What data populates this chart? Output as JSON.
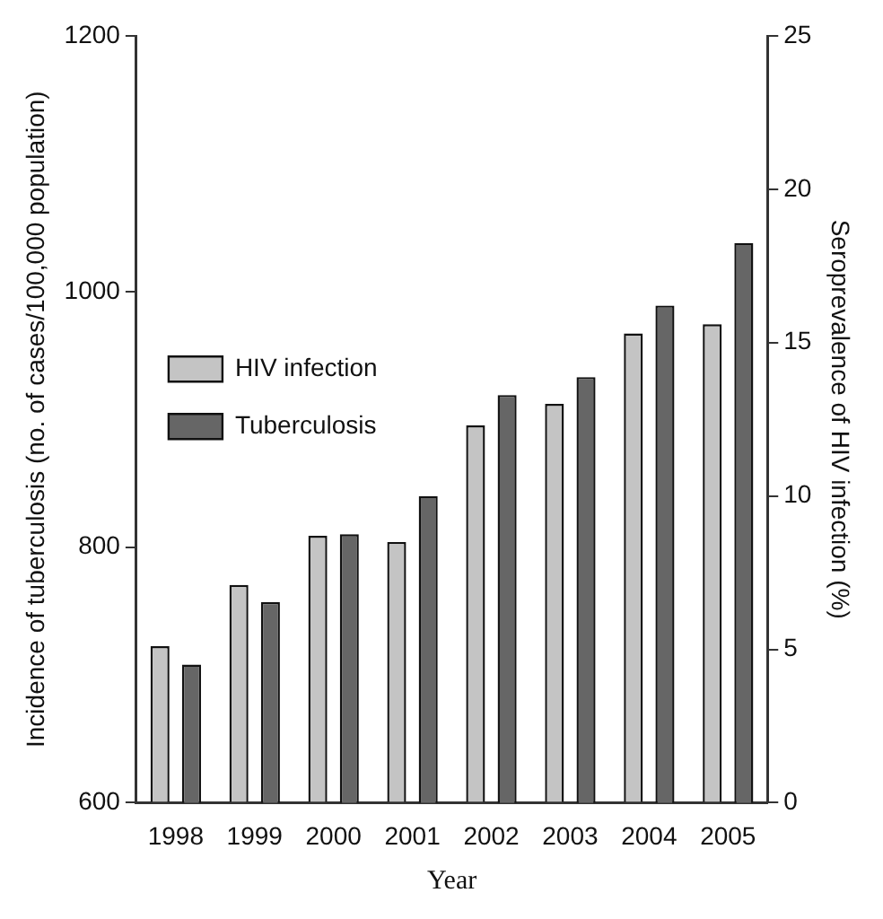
{
  "chart_data": {
    "type": "bar",
    "xlabel": "Year",
    "ylabel": "Incidence of tuberculosis (no. of cases/100,000 population)",
    "y2label": "Seroprevalence of HIV infection (%)",
    "categories": [
      "1998",
      "1999",
      "2000",
      "2001",
      "2002",
      "2003",
      "2004",
      "2005"
    ],
    "series": [
      {
        "name": "HIV infection",
        "color": "#c4c4c4",
        "axis": "y2",
        "values": [
          5.1,
          7.1,
          8.7,
          8.5,
          12.3,
          13.0,
          15.3,
          15.6
        ]
      },
      {
        "name": "Tuberculosis",
        "color": "#666666",
        "values": [
          708,
          757,
          810,
          840,
          919,
          933,
          989,
          1038
        ]
      }
    ],
    "ylim": [
      600,
      1200
    ],
    "yticks": [
      600,
      800,
      1000,
      1200
    ],
    "y2lim": [
      0,
      25
    ],
    "y2ticks": [
      0,
      5,
      10,
      15,
      20,
      25
    ],
    "grid": false,
    "legend": "top"
  }
}
